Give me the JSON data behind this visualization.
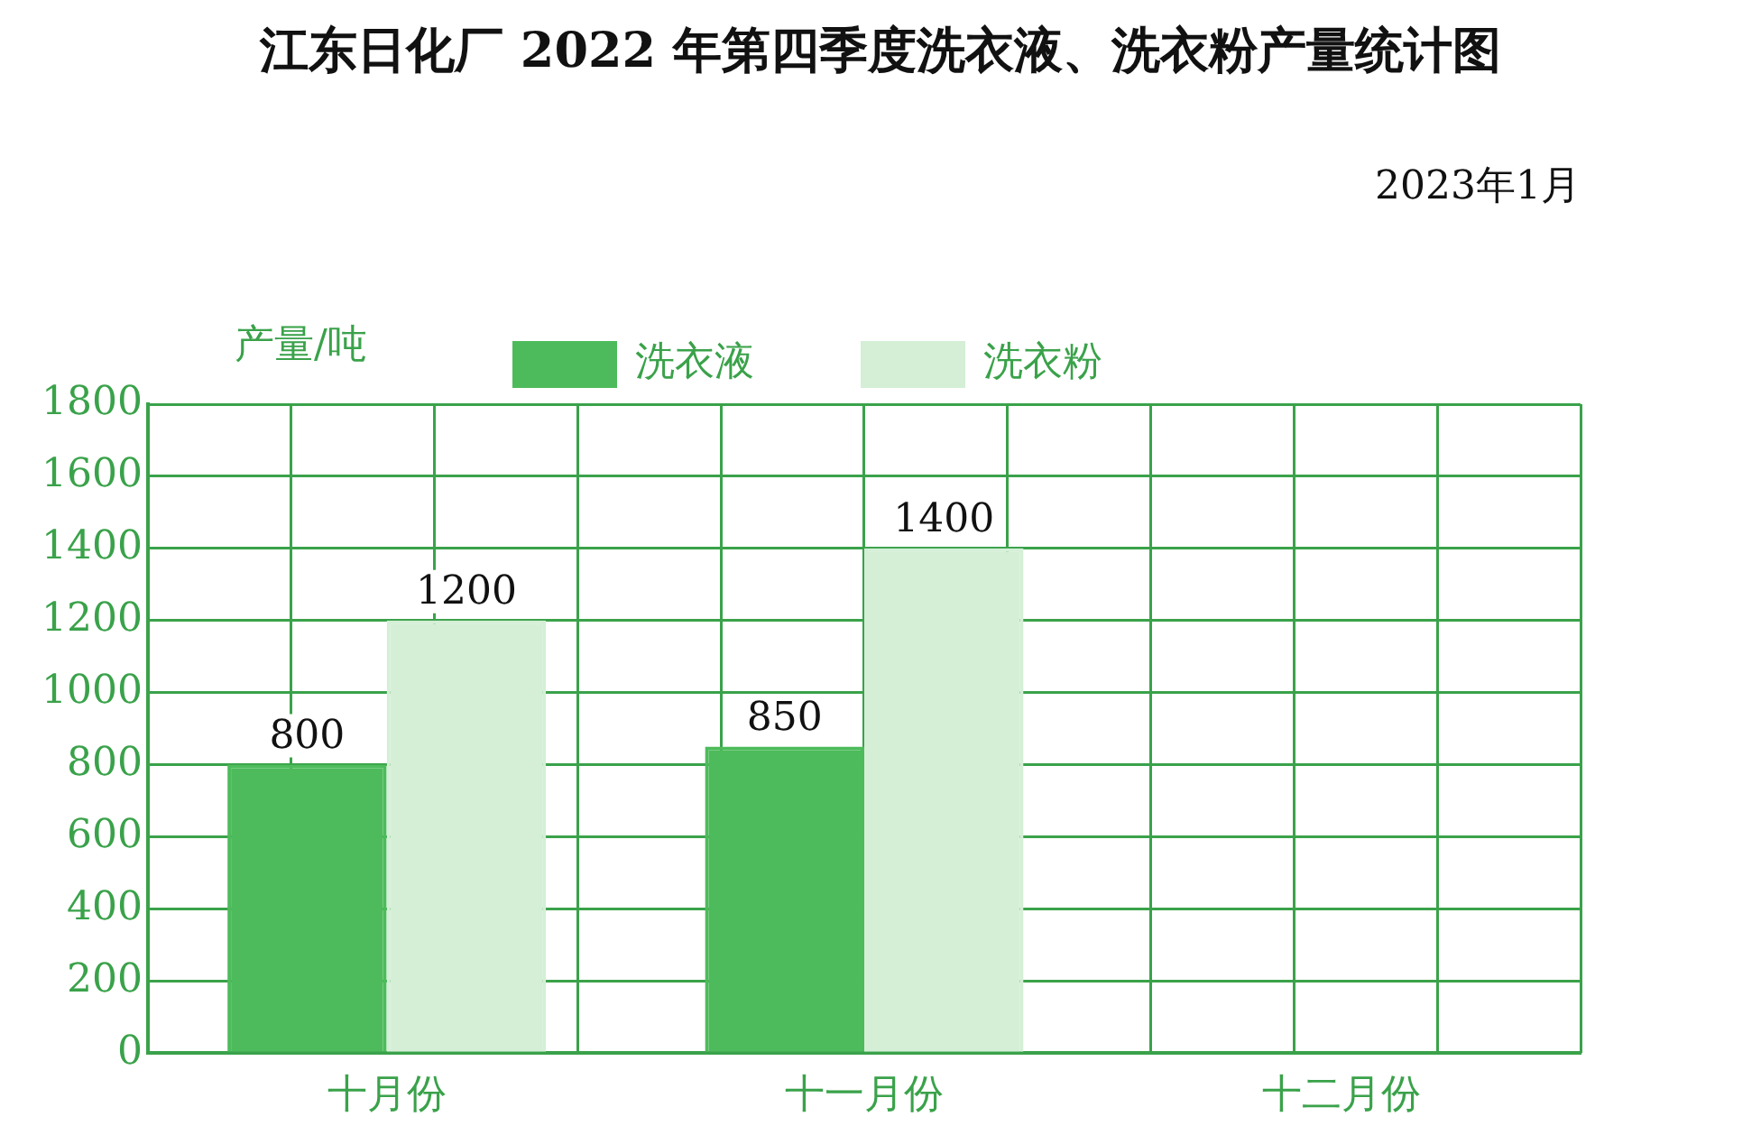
{
  "chart_data": {
    "type": "bar",
    "title": "江东日化厂 2022 年第四季度洗衣液、洗衣粉产量统计图",
    "subtitle": "2023年1月",
    "ylabel": "产量/吨",
    "categories": [
      "十月份",
      "十一月份",
      "十二月份"
    ],
    "series": [
      {
        "name": "洗衣液",
        "color": "#4dbb5b",
        "values": [
          800,
          850,
          null
        ]
      },
      {
        "name": "洗衣粉",
        "color": "#d4efd6",
        "values": [
          1200,
          1400,
          null
        ]
      }
    ],
    "ylim": [
      0,
      1800
    ],
    "yticks": [
      0,
      200,
      400,
      600,
      800,
      1000,
      1200,
      1400,
      1600,
      1800
    ],
    "grid": true,
    "legend": "top",
    "data_labels": true
  }
}
